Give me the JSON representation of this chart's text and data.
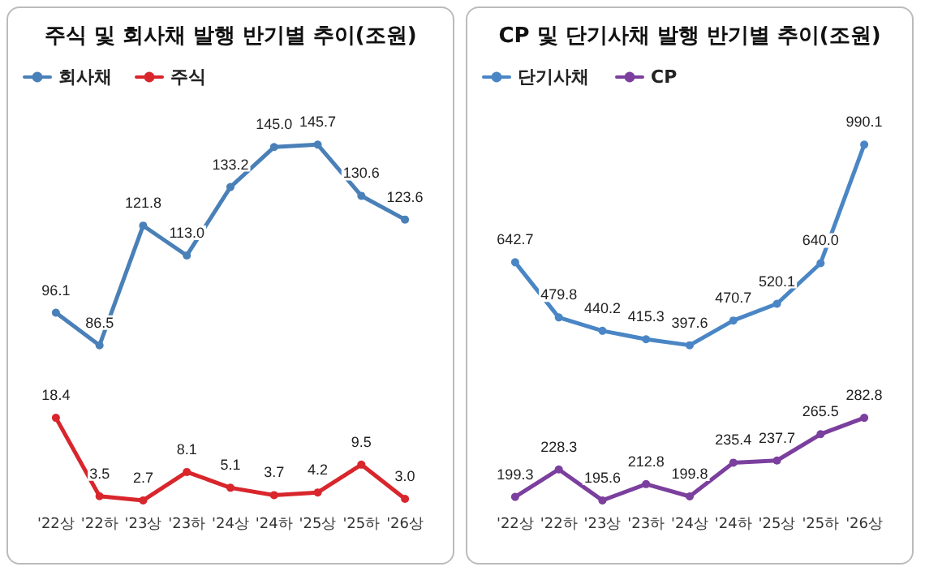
{
  "chart_data": [
    {
      "type": "line",
      "title": "주식 및 회사채 발행 반기별 추이(조원)",
      "categories": [
        null,
        null,
        null,
        null,
        null,
        null,
        null,
        null,
        null
      ],
      "legend": "top left",
      "marker": "circle",
      "tick_labels": false,
      "series": [
        {
          "name": "회사채",
          "color": "#4a80b8",
          "values": [
            96.1,
            86.5,
            121.8,
            113.0,
            133.2,
            145.0,
            145.7,
            130.6,
            123.6
          ],
          "value_labels": [
            "96.1",
            "86.5",
            "121.8",
            "113.0",
            "133.2",
            "145.0",
            "145.7",
            "130.6",
            "123.6"
          ]
        }
      ]
    },
    {
      "type": "line",
      "categories": [
        "'22상",
        "'22하",
        "'23상",
        "'23하",
        "'24상",
        "'24하",
        "'25상",
        "'25하",
        "'26상"
      ],
      "legend": "top left",
      "marker": "circle",
      "tick_labels": "x",
      "series": [
        {
          "name": "주식",
          "color": "#d8262c",
          "values": [
            18.4,
            3.5,
            2.7,
            8.1,
            5.1,
            3.7,
            4.2,
            9.5,
            3.0
          ],
          "value_labels": [
            "18.4",
            "3.5",
            "2.7",
            "8.1",
            "5.1",
            "3.7",
            "4.2",
            "9.5",
            "3.0"
          ]
        }
      ]
    },
    {
      "type": "line",
      "title": "CP 및 단기사채 발행 반기별 추이(조원)",
      "categories": [
        null,
        null,
        null,
        null,
        null,
        null,
        null,
        null,
        null
      ],
      "legend": "top left",
      "marker": "circle",
      "tick_labels": false,
      "series": [
        {
          "name": "단기사채",
          "color": "#4a86c5",
          "values": [
            642.7,
            479.8,
            440.2,
            415.3,
            397.6,
            470.7,
            520.1,
            640.0,
            990.1
          ],
          "value_labels": [
            "642.7",
            "479.8",
            "440.2",
            "415.3",
            "397.6",
            "470.7",
            "520.1",
            "640.0",
            "990.1"
          ]
        }
      ]
    },
    {
      "type": "line",
      "categories": [
        "'22상",
        "'22하",
        "'23상",
        "'23하",
        "'24상",
        "'24하",
        "'25상",
        "'25하",
        "'26상"
      ],
      "legend": "top left",
      "marker": "circle",
      "tick_labels": "x",
      "series": [
        {
          "name": "CP",
          "color": "#7b3f9e",
          "values": [
            199.3,
            228.3,
            195.6,
            212.8,
            199.8,
            235.4,
            237.7,
            265.5,
            282.8
          ],
          "value_labels": [
            "199.3",
            "228.3",
            "195.6",
            "212.8",
            "199.8",
            "235.4",
            "237.7",
            "265.5",
            "282.8"
          ]
        }
      ]
    }
  ]
}
